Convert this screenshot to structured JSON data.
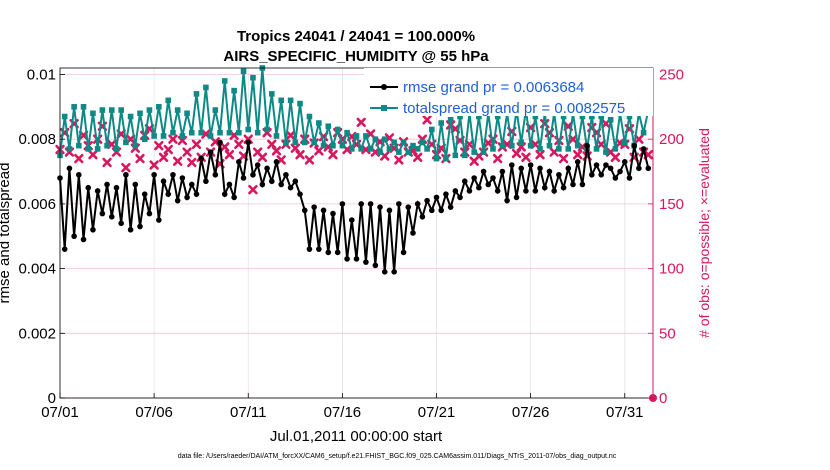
{
  "chart_data": {
    "type": "line",
    "title": "Tropics 24041 / 24041 = 100.000%",
    "subtitle": "AIRS_SPECIFIC_HUMIDITY @ 55 hPa",
    "xlabel": "Jul.01,2011 00:00:00 start",
    "ylabel": "rmse and totalspread",
    "ylabel_right": "# of obs: o=possible; ×=evaluated",
    "footer": "data file: /Users/raeder/DAI/ATM_forcXX/CAM6_setup/f.e21.FHIST_BGC.f09_025.CAM6assim.011/Diags_NTrS_2011-07/obs_diag_output.nc",
    "x_range": [
      0,
      31.5
    ],
    "y_range": [
      0,
      0.0102
    ],
    "y2_range": [
      0,
      255
    ],
    "x_tick_labels": [
      "07/01",
      "07/06",
      "07/11",
      "07/16",
      "07/21",
      "07/26",
      "07/31"
    ],
    "x_tick_days": [
      0,
      5,
      10,
      15,
      20,
      25,
      30
    ],
    "y_tick_labels": [
      "0",
      "0.002",
      "0.004",
      "0.006",
      "0.008",
      "0.01"
    ],
    "y_tick_values": [
      0,
      0.002,
      0.004,
      0.006,
      0.008,
      0.01
    ],
    "y2_tick_labels": [
      "0",
      "50",
      "100",
      "150",
      "200",
      "250"
    ],
    "y2_tick_values": [
      0,
      50,
      100,
      150,
      200,
      250
    ],
    "grid": true,
    "legend": [
      {
        "label": "rmse grand pr = 0.0063684",
        "color": "#000000"
      },
      {
        "label": "totalspread grand pr = 0.0082575",
        "color": "#0e8a86"
      }
    ],
    "series": [
      {
        "name": "rmse",
        "color": "#000000",
        "x": [
          0.0,
          0.25,
          0.5,
          0.75,
          1.0,
          1.25,
          1.5,
          1.75,
          2.0,
          2.25,
          2.5,
          2.75,
          3.0,
          3.25,
          3.5,
          3.75,
          4.0,
          4.25,
          4.5,
          4.75,
          5.0,
          5.25,
          5.5,
          5.75,
          6.0,
          6.25,
          6.5,
          6.75,
          7.0,
          7.25,
          7.5,
          7.75,
          8.0,
          8.25,
          8.5,
          8.75,
          9.0,
          9.25,
          9.5,
          9.75,
          10.0,
          10.25,
          10.5,
          10.75,
          11.0,
          11.25,
          11.5,
          11.75,
          12.0,
          12.25,
          12.5,
          12.75,
          13.0,
          13.25,
          13.5,
          13.75,
          14.0,
          14.25,
          14.5,
          14.75,
          15.0,
          15.25,
          15.5,
          15.75,
          16.0,
          16.25,
          16.5,
          16.75,
          17.0,
          17.25,
          17.5,
          17.75,
          18.0,
          18.25,
          18.5,
          18.75,
          19.0,
          19.25,
          19.5,
          19.75,
          20.0,
          20.25,
          20.5,
          20.75,
          21.0,
          21.25,
          21.5,
          21.75,
          22.0,
          22.25,
          22.5,
          22.75,
          23.0,
          23.25,
          23.5,
          23.75,
          24.0,
          24.25,
          24.5,
          24.75,
          25.0,
          25.25,
          25.5,
          25.75,
          26.0,
          26.25,
          26.5,
          26.75,
          27.0,
          27.25,
          27.5,
          27.75,
          28.0,
          28.25,
          28.5,
          28.75,
          29.0,
          29.25,
          29.5,
          29.75,
          30.0,
          30.25,
          30.5,
          30.75,
          31.0,
          31.25
        ],
        "values": [
          0.0068,
          0.0046,
          0.0071,
          0.005,
          0.0069,
          0.0049,
          0.0065,
          0.0052,
          0.0064,
          0.0057,
          0.0066,
          0.0056,
          0.0065,
          0.0054,
          0.0069,
          0.0052,
          0.0066,
          0.0053,
          0.0063,
          0.0057,
          0.0069,
          0.0055,
          0.0067,
          0.0063,
          0.0069,
          0.0061,
          0.0068,
          0.0062,
          0.0066,
          0.0063,
          0.0074,
          0.0067,
          0.0076,
          0.0069,
          0.0079,
          0.0063,
          0.0066,
          0.0062,
          0.0073,
          0.0068,
          0.0079,
          0.0069,
          0.0072,
          0.0066,
          0.0071,
          0.0067,
          0.0073,
          0.0066,
          0.0069,
          0.0065,
          0.0067,
          0.0063,
          0.0058,
          0.0046,
          0.0059,
          0.0046,
          0.0058,
          0.0045,
          0.0057,
          0.0045,
          0.006,
          0.0043,
          0.0055,
          0.0043,
          0.006,
          0.0042,
          0.006,
          0.0041,
          0.0059,
          0.0039,
          0.0058,
          0.0039,
          0.006,
          0.0045,
          0.0059,
          0.0051,
          0.006,
          0.0056,
          0.0061,
          0.0058,
          0.0062,
          0.0058,
          0.0063,
          0.0059,
          0.0064,
          0.0062,
          0.0067,
          0.0064,
          0.0068,
          0.0065,
          0.007,
          0.0066,
          0.0068,
          0.0064,
          0.007,
          0.0061,
          0.0072,
          0.0062,
          0.0071,
          0.0064,
          0.0072,
          0.0064,
          0.0071,
          0.0065,
          0.007,
          0.0064,
          0.0069,
          0.0065,
          0.0071,
          0.0066,
          0.0073,
          0.0066,
          0.0078,
          0.0069,
          0.0072,
          0.0069,
          0.0072,
          0.0071,
          0.0068,
          0.007,
          0.0073,
          0.0068,
          0.0078,
          0.0071,
          0.0077,
          0.0071
        ]
      },
      {
        "name": "totalspread",
        "color": "#0e8a86",
        "x": [
          0.0,
          0.25,
          0.5,
          0.75,
          1.0,
          1.25,
          1.5,
          1.75,
          2.0,
          2.25,
          2.5,
          2.75,
          3.0,
          3.25,
          3.5,
          3.75,
          4.0,
          4.25,
          4.5,
          4.75,
          5.0,
          5.25,
          5.5,
          5.75,
          6.0,
          6.25,
          6.5,
          6.75,
          7.0,
          7.25,
          7.5,
          7.75,
          8.0,
          8.25,
          8.5,
          8.75,
          9.0,
          9.25,
          9.5,
          9.75,
          10.0,
          10.25,
          10.5,
          10.75,
          11.0,
          11.25,
          11.5,
          11.75,
          12.0,
          12.25,
          12.5,
          12.75,
          13.0,
          13.25,
          13.5,
          13.75,
          14.0,
          14.25,
          14.5,
          14.75,
          15.0,
          15.25,
          15.5,
          15.75,
          16.0,
          16.25,
          16.5,
          16.75,
          17.0,
          17.25,
          17.5,
          17.75,
          18.0,
          18.25,
          18.5,
          18.75,
          19.0,
          19.25,
          19.5,
          19.75,
          20.0,
          20.25,
          20.5,
          20.75,
          21.0,
          21.25,
          21.5,
          21.75,
          22.0,
          22.25,
          22.5,
          22.75,
          23.0,
          23.25,
          23.5,
          23.75,
          24.0,
          24.25,
          24.5,
          24.75,
          25.0,
          25.25,
          25.5,
          25.75,
          26.0,
          26.25,
          26.5,
          26.75,
          27.0,
          27.25,
          27.5,
          27.75,
          28.0,
          28.25,
          28.5,
          28.75,
          29.0,
          29.25,
          29.5,
          29.75,
          30.0,
          30.25,
          30.5,
          30.75,
          31.0,
          31.25
        ],
        "values": [
          0.0075,
          0.0087,
          0.0077,
          0.009,
          0.0078,
          0.009,
          0.0077,
          0.0088,
          0.0077,
          0.0089,
          0.0078,
          0.0089,
          0.0077,
          0.0089,
          0.0079,
          0.0087,
          0.0078,
          0.0088,
          0.008,
          0.0089,
          0.0081,
          0.009,
          0.0081,
          0.0092,
          0.0082,
          0.0089,
          0.0081,
          0.0088,
          0.0082,
          0.0094,
          0.0082,
          0.0096,
          0.0081,
          0.0089,
          0.0082,
          0.0098,
          0.0082,
          0.0095,
          0.0082,
          0.0101,
          0.0083,
          0.0099,
          0.0082,
          0.0102,
          0.0083,
          0.0094,
          0.0081,
          0.0092,
          0.0079,
          0.0092,
          0.0079,
          0.0091,
          0.0079,
          0.0087,
          0.0079,
          0.0085,
          0.0078,
          0.0084,
          0.0078,
          0.0083,
          0.0078,
          0.0082,
          0.0077,
          0.0081,
          0.0077,
          0.0081,
          0.0077,
          0.008,
          0.0076,
          0.008,
          0.0077,
          0.0079,
          0.0076,
          0.0079,
          0.0076,
          0.0078,
          0.0077,
          0.0079,
          0.0077,
          0.0083,
          0.0074,
          0.0085,
          0.0074,
          0.0086,
          0.0075,
          0.0087,
          0.0075,
          0.0088,
          0.0076,
          0.0087,
          0.0076,
          0.0088,
          0.0077,
          0.0087,
          0.0078,
          0.0088,
          0.0078,
          0.0089,
          0.0079,
          0.0089,
          0.0078,
          0.0087,
          0.0077,
          0.0088,
          0.0078,
          0.0088,
          0.0077,
          0.0087,
          0.0077,
          0.0088,
          0.0078,
          0.0087,
          0.0077,
          0.0087,
          0.0077,
          0.0087,
          0.0076,
          0.0086,
          0.0077,
          0.0088,
          0.0079,
          0.0087,
          0.0078,
          0.0088,
          0.0082,
          0.0089
        ]
      },
      {
        "name": "# obs possible",
        "color": "#d8175f",
        "marker": "o",
        "x": [
          31.5
        ],
        "values": [
          0
        ]
      },
      {
        "name": "# obs evaluated",
        "color": "#d8175f",
        "marker": "x",
        "axis": "right",
        "x": [
          0.0,
          0.25,
          0.5,
          0.75,
          1.0,
          1.25,
          1.5,
          1.75,
          2.0,
          2.25,
          2.5,
          2.75,
          3.0,
          3.25,
          3.5,
          3.75,
          4.0,
          4.25,
          4.5,
          4.75,
          5.0,
          5.25,
          5.5,
          5.75,
          6.0,
          6.25,
          6.5,
          6.75,
          7.0,
          7.25,
          7.5,
          7.75,
          8.0,
          8.25,
          8.5,
          8.75,
          9.0,
          9.25,
          9.5,
          9.75,
          10.0,
          10.25,
          10.5,
          10.75,
          11.0,
          11.25,
          11.5,
          11.75,
          12.0,
          12.25,
          12.5,
          12.75,
          13.0,
          13.25,
          13.5,
          13.75,
          14.0,
          14.25,
          14.5,
          14.75,
          15.0,
          15.25,
          15.5,
          15.75,
          16.0,
          16.25,
          16.5,
          16.75,
          17.0,
          17.25,
          17.5,
          17.75,
          18.0,
          18.25,
          18.5,
          18.75,
          19.0,
          19.25,
          19.5,
          19.75,
          20.0,
          20.25,
          20.5,
          20.75,
          21.0,
          21.25,
          21.5,
          21.75,
          22.0,
          22.25,
          22.5,
          22.75,
          23.0,
          23.25,
          23.5,
          23.75,
          24.0,
          24.25,
          24.5,
          24.75,
          25.0,
          25.25,
          25.5,
          25.75,
          26.0,
          26.25,
          26.5,
          26.75,
          27.0,
          27.25,
          27.5,
          27.75,
          28.0,
          28.25,
          28.5,
          28.75,
          29.0,
          29.25,
          29.5,
          29.75,
          30.0,
          30.25,
          30.5,
          30.75,
          31.0,
          31.25
        ],
        "values": [
          192,
          205,
          190,
          212,
          185,
          203,
          195,
          188,
          200,
          210,
          182,
          196,
          190,
          204,
          178,
          200,
          193,
          185,
          203,
          208,
          180,
          195,
          186,
          192,
          200,
          183,
          199,
          190,
          182,
          196,
          186,
          204,
          190,
          198,
          181,
          194,
          188,
          203,
          196,
          187,
          200,
          161,
          190,
          186,
          205,
          196,
          191,
          184,
          196,
          203,
          193,
          188,
          200,
          184,
          197,
          191,
          202,
          194,
          188,
          205,
          200,
          192,
          202,
          196,
          213,
          192,
          204,
          190,
          198,
          187,
          201,
          193,
          184,
          198,
          190,
          191,
          186,
          200,
          215,
          196,
          188,
          193,
          185,
          211,
          208,
          199,
          190,
          196,
          183,
          187,
          190,
          197,
          200,
          185,
          194,
          196,
          206,
          189,
          194,
          186,
          209,
          196,
          188,
          212,
          205,
          190,
          199,
          185,
          210,
          200,
          188,
          194,
          187,
          209,
          205,
          196,
          212,
          190,
          186,
          197,
          196,
          208,
          186,
          200,
          190,
          188
        ]
      }
    ]
  }
}
